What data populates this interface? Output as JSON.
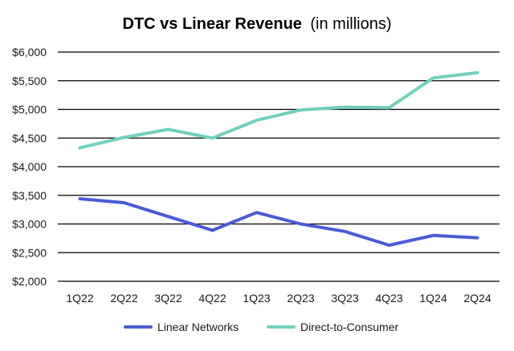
{
  "chart_data": {
    "type": "line",
    "title": "DTC vs Linear Revenue",
    "title_suffix": "(in millions)",
    "xlabel": "",
    "ylabel": "",
    "categories": [
      "1Q22",
      "2Q22",
      "3Q22",
      "4Q22",
      "1Q23",
      "2Q23",
      "3Q23",
      "4Q23",
      "1Q24",
      "2Q24"
    ],
    "ylim": [
      2000,
      6000
    ],
    "yticks": [
      2000,
      2500,
      3000,
      3500,
      4000,
      4500,
      5000,
      5500,
      6000
    ],
    "ytick_labels": [
      "$2,000",
      "$2,500",
      "$3,000",
      "$3,500",
      "$4,000",
      "$4,500",
      "$5,000",
      "$5,500",
      "$6,000"
    ],
    "grid": true,
    "legend_position": "bottom",
    "series": [
      {
        "name": "Linear Networks",
        "color": "#4a5bd4",
        "values": [
          3440,
          3370,
          3130,
          2890,
          3200,
          3000,
          2870,
          2630,
          2800,
          2760
        ]
      },
      {
        "name": "Direct-to-Consumer",
        "color": "#72d0bb",
        "values": [
          4330,
          4510,
          4650,
          4500,
          4810,
          4990,
          5040,
          5030,
          5550,
          5640
        ]
      }
    ]
  }
}
